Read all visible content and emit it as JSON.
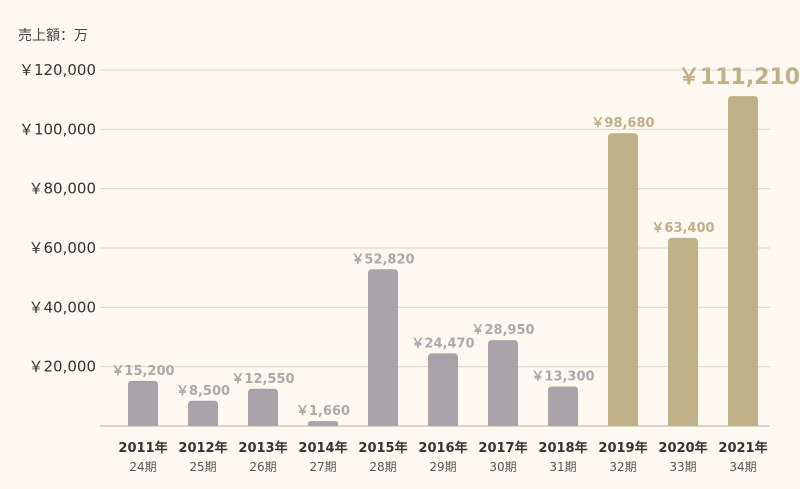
{
  "chart_data": {
    "type": "bar",
    "unit_label": "売上額：万",
    "ylim": [
      0,
      120000
    ],
    "yticks": [
      "￥120,000",
      "￥100,000",
      "￥80,000",
      "￥60,000",
      "￥40,000",
      "￥20,000"
    ],
    "grid": true,
    "categories": [
      "2011年",
      "2012年",
      "2013年",
      "2014年",
      "2015年",
      "2016年",
      "2017年",
      "2018年",
      "2019年",
      "2020年",
      "2021年"
    ],
    "periods": [
      "24期",
      "25期",
      "26期",
      "27期",
      "28期",
      "29期",
      "30期",
      "31期",
      "32期",
      "33期",
      "34期"
    ],
    "values": [
      15200,
      8500,
      12550,
      1660,
      52820,
      24470,
      28950,
      13300,
      98680,
      63400,
      111210
    ],
    "value_labels": [
      "￥15,200",
      "￥8,500",
      "￥12,550",
      "￥1,660",
      "￥52,820",
      "￥24,470",
      "￥28,950",
      "￥13,300",
      "￥98,680",
      "￥63,400",
      "￥111,210"
    ],
    "colors": {
      "normal": "#a8a3a8",
      "highlight": "#c0b08a",
      "label_normal": "#aaaaaa",
      "label_highlight": "#c0b08a"
    },
    "highlight_from_index": 8
  }
}
